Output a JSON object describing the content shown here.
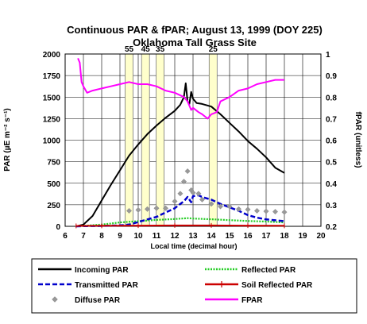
{
  "chart_data": {
    "type": "line",
    "title": "Continuous PAR & fPAR; August 13, 1999 (DOY 225)",
    "subtitle": "Oklahoma Tall Grass Site",
    "xlabel": "Local time (decimal hour)",
    "ylabel_left": "PAR (µE m⁻² s⁻¹)",
    "ylabel_right": "fPAR (unitless)",
    "xlim": [
      6,
      20
    ],
    "ylim_left": [
      0,
      2000
    ],
    "ylim_right": [
      0.2,
      1.0
    ],
    "x_ticks": [
      "6",
      "7",
      "8",
      "9",
      "10",
      "11",
      "12",
      "13",
      "14",
      "15",
      "16",
      "17",
      "18",
      "19",
      "20"
    ],
    "y_left_ticks": [
      "0",
      "250",
      "500",
      "750",
      "1000",
      "1250",
      "1500",
      "1750",
      "2000"
    ],
    "y_right_ticks": [
      "0.2",
      "0.3",
      "0.4",
      "0.5",
      "0.6",
      "0.7",
      "0.8",
      "0.9",
      "1"
    ],
    "grid": true,
    "legend_position": "bottom",
    "sun_angle_bands": [
      {
        "label": "55",
        "x": 9.5
      },
      {
        "label": "45",
        "x": 10.4
      },
      {
        "label": "35",
        "x": 11.2
      },
      {
        "label": "25",
        "x": 14.1
      }
    ],
    "series": [
      {
        "name": "Incoming PAR",
        "axis": "left",
        "color": "#000000",
        "style": "solid",
        "x": [
          6.6,
          7.0,
          7.5,
          8.0,
          8.5,
          9.0,
          9.5,
          10.0,
          10.5,
          11.0,
          11.5,
          12.0,
          12.3,
          12.5,
          12.6,
          12.7,
          12.8,
          12.9,
          13.0,
          13.2,
          13.5,
          14.0,
          14.5,
          15.0,
          15.5,
          16.0,
          16.5,
          17.0,
          17.5,
          18.0
        ],
        "y": [
          0,
          20,
          120,
          300,
          480,
          650,
          820,
          950,
          1070,
          1170,
          1260,
          1340,
          1410,
          1500,
          1660,
          1450,
          1420,
          1560,
          1480,
          1430,
          1420,
          1390,
          1300,
          1200,
          1100,
          990,
          900,
          800,
          680,
          620
        ]
      },
      {
        "name": "Reflected PAR",
        "axis": "left",
        "color": "#22cc22",
        "style": "dotted",
        "x": [
          6.6,
          7.0,
          8.0,
          9.0,
          10.0,
          11.0,
          12.0,
          12.7,
          13.0,
          14.0,
          15.0,
          16.0,
          17.0,
          18.0
        ],
        "y": [
          0,
          5,
          20,
          45,
          60,
          75,
          85,
          95,
          90,
          82,
          72,
          62,
          55,
          45
        ]
      },
      {
        "name": "Transmitted PAR",
        "axis": "left",
        "color": "#0000cc",
        "style": "dashed",
        "x": [
          6.6,
          7.0,
          8.0,
          9.0,
          9.5,
          10.0,
          10.5,
          11.0,
          11.5,
          12.0,
          12.3,
          12.5,
          12.7,
          12.9,
          13.0,
          13.3,
          13.5,
          14.0,
          14.5,
          15.0,
          15.5,
          16.0,
          16.5,
          17.0,
          17.5,
          18.0
        ],
        "y": [
          0,
          2,
          5,
          10,
          20,
          50,
          80,
          110,
          160,
          210,
          260,
          290,
          340,
          280,
          350,
          360,
          340,
          310,
          260,
          220,
          180,
          130,
          100,
          80,
          70,
          60
        ]
      },
      {
        "name": "Soil Reflected PAR",
        "axis": "left",
        "color": "#cc0000",
        "style": "solid",
        "x": [
          6.6,
          8.0,
          10.0,
          12.0,
          14.0,
          16.0,
          18.0
        ],
        "y": [
          5,
          6,
          8,
          10,
          10,
          8,
          6
        ]
      },
      {
        "name": "Diffuse PAR",
        "axis": "left",
        "color": "#999999",
        "style": "diamond",
        "x": [
          9.5,
          10.0,
          10.5,
          11.0,
          11.5,
          12.0,
          12.3,
          12.5,
          12.7,
          12.9,
          13.0,
          13.3,
          13.5,
          14.0,
          14.5,
          15.0,
          15.5,
          16.0,
          16.5,
          17.0,
          17.5,
          18.0
        ],
        "y": [
          180,
          190,
          200,
          210,
          210,
          290,
          380,
          520,
          640,
          420,
          390,
          380,
          310,
          260,
          230,
          230,
          200,
          195,
          180,
          175,
          170,
          165
        ]
      },
      {
        "name": "FPAR",
        "axis": "right",
        "color": "#ff00ff",
        "style": "solid",
        "x": [
          6.7,
          6.8,
          6.9,
          7.0,
          7.2,
          7.5,
          8.0,
          8.5,
          9.0,
          9.5,
          10.0,
          10.5,
          11.0,
          11.5,
          12.0,
          12.5,
          12.7,
          12.9,
          13.0,
          13.3,
          13.5,
          13.8,
          14.0,
          14.3,
          14.5,
          15.0,
          15.5,
          16.0,
          16.5,
          17.0,
          17.5,
          18.0
        ],
        "y": [
          0.98,
          0.96,
          0.87,
          0.85,
          0.82,
          0.83,
          0.84,
          0.85,
          0.86,
          0.87,
          0.86,
          0.86,
          0.85,
          0.83,
          0.82,
          0.8,
          0.78,
          0.74,
          0.75,
          0.73,
          0.72,
          0.7,
          0.72,
          0.73,
          0.78,
          0.8,
          0.83,
          0.84,
          0.86,
          0.87,
          0.88,
          0.88
        ]
      }
    ]
  }
}
